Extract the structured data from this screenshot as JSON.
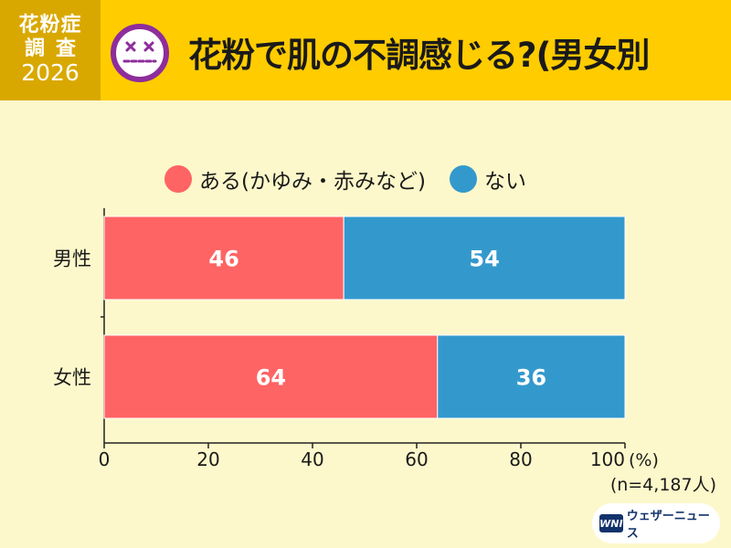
{
  "header": {
    "badge_line1": "花粉症",
    "badge_line2": "調査",
    "badge_line3": "2026",
    "title": "花粉で肌の不調感じる?(男女別"
  },
  "colors": {
    "header_bg": "#ffcc00",
    "badge_bg": "#d9a800",
    "page_bg": "#fdf8cb",
    "series_yes": "#ff6464",
    "series_no": "#3399cc",
    "face_icon": "#8e2d9c"
  },
  "face_icon_name": "dizzy-face-icon",
  "chart_data": {
    "type": "bar",
    "orientation": "horizontal",
    "stacked": true,
    "categories": [
      "男性",
      "女性"
    ],
    "series": [
      {
        "name": "ある(かゆみ・赤みなど)",
        "values": [
          46,
          64
        ],
        "color": "#ff6464"
      },
      {
        "name": "ない",
        "values": [
          54,
          36
        ],
        "color": "#3399cc"
      }
    ],
    "xlim": [
      0,
      100
    ],
    "xticks": [
      "0",
      "20",
      "40",
      "60",
      "80",
      "100"
    ],
    "unit_label": "(%)",
    "note": "(n=4,187人)",
    "grid": false,
    "legend_position": "top"
  },
  "logo": {
    "mark": "WNI",
    "text": "ウェザーニュース"
  }
}
